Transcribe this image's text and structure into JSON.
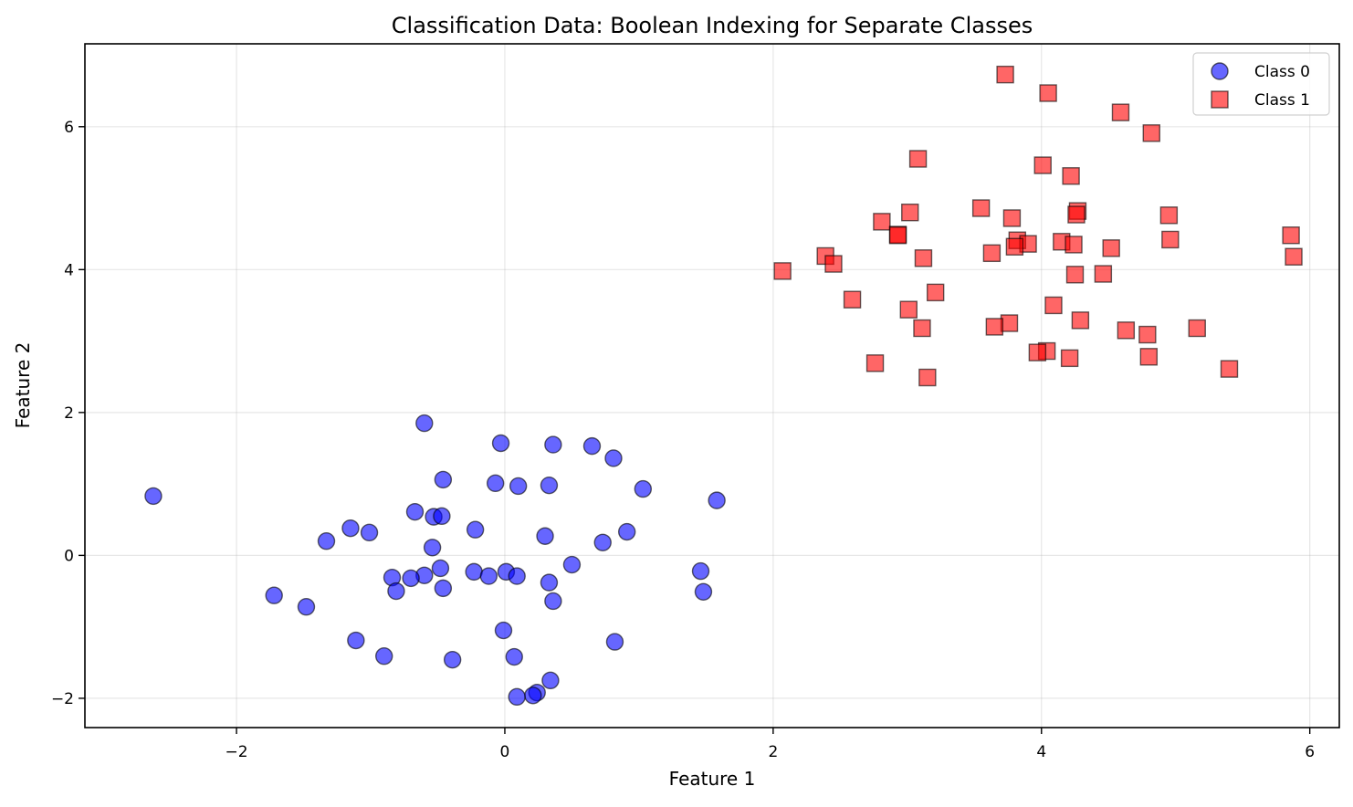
{
  "chart_data": {
    "type": "scatter",
    "title": "Classification Data: Boolean Indexing for Separate Classes",
    "xlabel": "Feature 1",
    "ylabel": "Feature 2",
    "xlim": [
      -3.13,
      6.22
    ],
    "ylim": [
      -2.41,
      7.16
    ],
    "xticks": [
      -2,
      0,
      2,
      4,
      6
    ],
    "yticks": [
      -2,
      0,
      2,
      4,
      6
    ],
    "xtick_labels": [
      "−2",
      "0",
      "2",
      "4",
      "6"
    ],
    "ytick_labels": [
      "−2",
      "0",
      "2",
      "4",
      "6"
    ],
    "grid": true,
    "legend_position": "upper right",
    "series": [
      {
        "name": "Class 0",
        "marker": "circle",
        "color": "#0000ff",
        "edgecolor": "#000000",
        "alpha": 0.6,
        "points": [
          [
            -2.62,
            0.83
          ],
          [
            -0.6,
            1.85
          ],
          [
            -0.03,
            1.57
          ],
          [
            0.36,
            1.55
          ],
          [
            0.65,
            1.53
          ],
          [
            0.81,
            1.36
          ],
          [
            -0.46,
            1.06
          ],
          [
            -0.07,
            1.01
          ],
          [
            0.1,
            0.97
          ],
          [
            0.33,
            0.98
          ],
          [
            1.03,
            0.93
          ],
          [
            1.58,
            0.77
          ],
          [
            -0.67,
            0.61
          ],
          [
            -0.53,
            0.54
          ],
          [
            -0.47,
            0.55
          ],
          [
            -1.15,
            0.38
          ],
          [
            -1.01,
            0.32
          ],
          [
            -0.22,
            0.36
          ],
          [
            0.3,
            0.27
          ],
          [
            0.91,
            0.33
          ],
          [
            -1.33,
            0.2
          ],
          [
            0.73,
            0.18
          ],
          [
            -0.54,
            0.11
          ],
          [
            0.5,
            -0.13
          ],
          [
            -0.48,
            -0.18
          ],
          [
            -0.23,
            -0.23
          ],
          [
            0.01,
            -0.23
          ],
          [
            1.46,
            -0.22
          ],
          [
            -0.84,
            -0.31
          ],
          [
            -0.6,
            -0.28
          ],
          [
            -0.7,
            -0.32
          ],
          [
            -0.12,
            -0.29
          ],
          [
            0.09,
            -0.29
          ],
          [
            0.33,
            -0.38
          ],
          [
            -0.81,
            -0.5
          ],
          [
            -0.46,
            -0.46
          ],
          [
            1.48,
            -0.51
          ],
          [
            0.36,
            -0.64
          ],
          [
            -1.72,
            -0.56
          ],
          [
            -1.48,
            -0.72
          ],
          [
            -0.01,
            -1.05
          ],
          [
            -1.11,
            -1.19
          ],
          [
            0.82,
            -1.21
          ],
          [
            -0.9,
            -1.41
          ],
          [
            -0.39,
            -1.46
          ],
          [
            0.07,
            -1.42
          ],
          [
            0.34,
            -1.75
          ],
          [
            0.24,
            -1.92
          ],
          [
            0.21,
            -1.96
          ],
          [
            0.09,
            -1.98
          ]
        ]
      },
      {
        "name": "Class 1",
        "marker": "square",
        "color": "#ff0000",
        "edgecolor": "#000000",
        "alpha": 0.6,
        "points": [
          [
            3.73,
            6.73
          ],
          [
            4.05,
            6.47
          ],
          [
            4.59,
            6.2
          ],
          [
            4.82,
            5.91
          ],
          [
            3.08,
            5.55
          ],
          [
            4.01,
            5.46
          ],
          [
            4.22,
            5.31
          ],
          [
            3.55,
            4.86
          ],
          [
            3.02,
            4.8
          ],
          [
            3.78,
            4.72
          ],
          [
            4.27,
            4.82
          ],
          [
            4.26,
            4.77
          ],
          [
            4.95,
            4.76
          ],
          [
            2.81,
            4.67
          ],
          [
            2.93,
            4.49
          ],
          [
            2.93,
            4.48
          ],
          [
            5.86,
            4.48
          ],
          [
            4.96,
            4.42
          ],
          [
            3.82,
            4.41
          ],
          [
            3.9,
            4.36
          ],
          [
            4.15,
            4.39
          ],
          [
            4.24,
            4.35
          ],
          [
            3.8,
            4.32
          ],
          [
            4.52,
            4.3
          ],
          [
            3.63,
            4.23
          ],
          [
            2.39,
            4.19
          ],
          [
            5.88,
            4.18
          ],
          [
            2.45,
            4.08
          ],
          [
            3.12,
            4.16
          ],
          [
            2.07,
            3.98
          ],
          [
            4.25,
            3.93
          ],
          [
            4.46,
            3.94
          ],
          [
            3.21,
            3.68
          ],
          [
            2.59,
            3.58
          ],
          [
            4.09,
            3.5
          ],
          [
            3.01,
            3.44
          ],
          [
            4.29,
            3.29
          ],
          [
            3.76,
            3.25
          ],
          [
            3.65,
            3.2
          ],
          [
            3.11,
            3.18
          ],
          [
            4.63,
            3.15
          ],
          [
            5.16,
            3.18
          ],
          [
            4.79,
            3.09
          ],
          [
            4.04,
            2.86
          ],
          [
            3.97,
            2.84
          ],
          [
            4.21,
            2.76
          ],
          [
            4.8,
            2.78
          ],
          [
            2.76,
            2.69
          ],
          [
            5.4,
            2.61
          ],
          [
            3.15,
            2.49
          ]
        ]
      }
    ]
  },
  "legend": {
    "items": [
      {
        "label": "Class 0",
        "marker": "circle",
        "color": "#6060ff"
      },
      {
        "label": "Class 1",
        "marker": "square",
        "color": "#ff6060"
      }
    ]
  },
  "colors": {
    "class0_fill": "#0000ff",
    "class1_fill": "#ff0000",
    "edge": "#000000",
    "grid": "#b0b0b0",
    "axes": "#000000"
  }
}
